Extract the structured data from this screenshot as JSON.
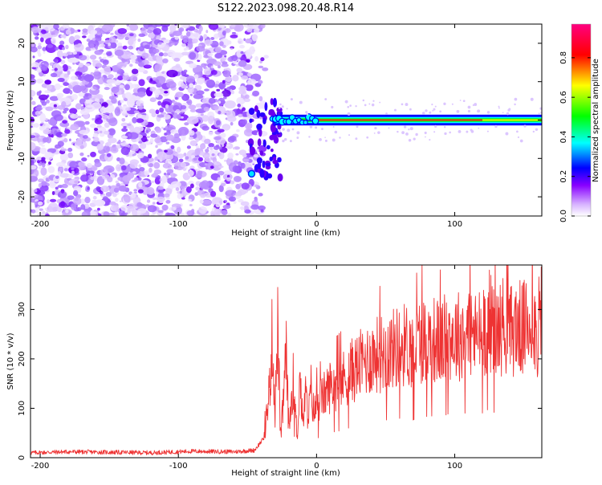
{
  "title": "S122.2023.098.20.48.R14",
  "chart_data": [
    {
      "type": "heatmap",
      "xlabel": "Height of straight line (km)",
      "ylabel": "Frequency (Hz)",
      "xlim": [
        -207,
        163
      ],
      "ylim": [
        -25,
        25
      ],
      "x_ticks": [
        -200,
        -100,
        0,
        100
      ],
      "y_ticks": [
        -20,
        -10,
        0,
        10,
        20
      ],
      "colorbar": {
        "label": "Normalized spectral amplitude",
        "range": [
          0,
          0.97
        ],
        "ticks": [
          0.0,
          0.2,
          0.4,
          0.6,
          0.8
        ],
        "colormap": [
          "#ffffff",
          "#8800ff",
          "#0000ff",
          "#00ffff",
          "#00ff00",
          "#ffff00",
          "#ff0000",
          "#ff0080"
        ]
      },
      "noise_region_x": [
        -207,
        -50
      ],
      "transition_x": [
        -50,
        0
      ],
      "tone": {
        "frequency": 0,
        "x_range": [
          -30,
          163
        ],
        "peak_amplitude": 0.95
      },
      "grid": false
    },
    {
      "type": "line",
      "xlabel": "Height of straight line (km)",
      "ylabel": "SNR (10 * v/v)",
      "xlim": [
        -207,
        163
      ],
      "ylim": [
        0,
        390
      ],
      "x_ticks": [
        -200,
        -100,
        0,
        100
      ],
      "y_ticks": [
        0,
        100,
        200,
        300
      ],
      "color": "#ee3333",
      "x": [
        -207,
        -180,
        -150,
        -120,
        -90,
        -60,
        -45,
        -38,
        -34,
        -32,
        -30,
        -28,
        -26,
        -24,
        -22,
        -20,
        -17,
        -14,
        -12,
        -10,
        -8,
        -6,
        -4,
        -2,
        0,
        5,
        10,
        15,
        20,
        25,
        30,
        35,
        40,
        45,
        50,
        55,
        60,
        65,
        70,
        75,
        80,
        85,
        90,
        95,
        100,
        105,
        110,
        115,
        120,
        125,
        130,
        135,
        140,
        145,
        150,
        155,
        160,
        163
      ],
      "y": [
        10,
        12,
        11,
        10,
        13,
        12,
        15,
        40,
        140,
        250,
        90,
        265,
        30,
        120,
        210,
        55,
        160,
        40,
        170,
        65,
        130,
        80,
        140,
        90,
        110,
        125,
        145,
        150,
        160,
        175,
        185,
        195,
        205,
        210,
        215,
        220,
        225,
        230,
        215,
        240,
        235,
        240,
        230,
        250,
        245,
        250,
        260,
        245,
        255,
        280,
        250,
        270,
        255,
        265,
        260,
        280,
        250,
        300
      ],
      "noise_band": {
        "baseline_x_range": [
          -207,
          -38
        ],
        "detected_x_range": [
          -38,
          163
        ]
      },
      "grid": false
    }
  ]
}
